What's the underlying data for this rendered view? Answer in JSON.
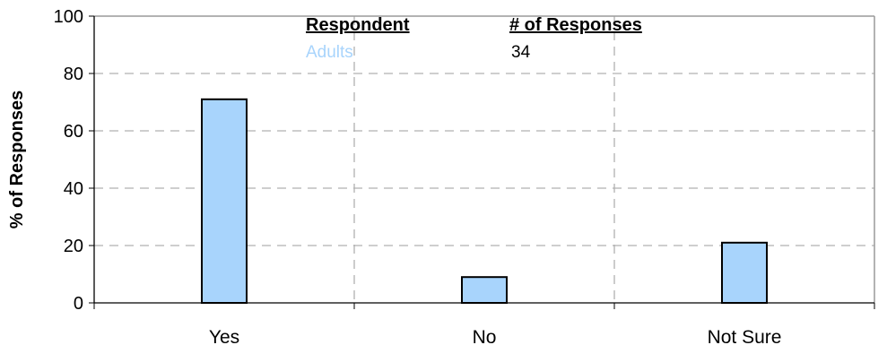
{
  "chart_data": {
    "type": "bar",
    "categories": [
      "Yes",
      "No",
      "Not Sure"
    ],
    "series": [
      {
        "name": "Adults",
        "values": [
          71,
          9,
          21
        ]
      }
    ],
    "ylabel": "% of Responses",
    "xlabel": "",
    "ylim": [
      0,
      100
    ],
    "yticks": [
      0,
      20,
      40,
      60,
      80,
      100
    ],
    "grid": true,
    "legend": {
      "position": "top-center",
      "header_respondent": "Respondent",
      "header_responses": "# of Responses",
      "rows": [
        {
          "respondent": "Adults",
          "responses": "34"
        }
      ]
    },
    "colors": {
      "bar_fill": "#a8d4fc",
      "bar_stroke": "#000000",
      "grid": "#b0b0b0"
    }
  }
}
